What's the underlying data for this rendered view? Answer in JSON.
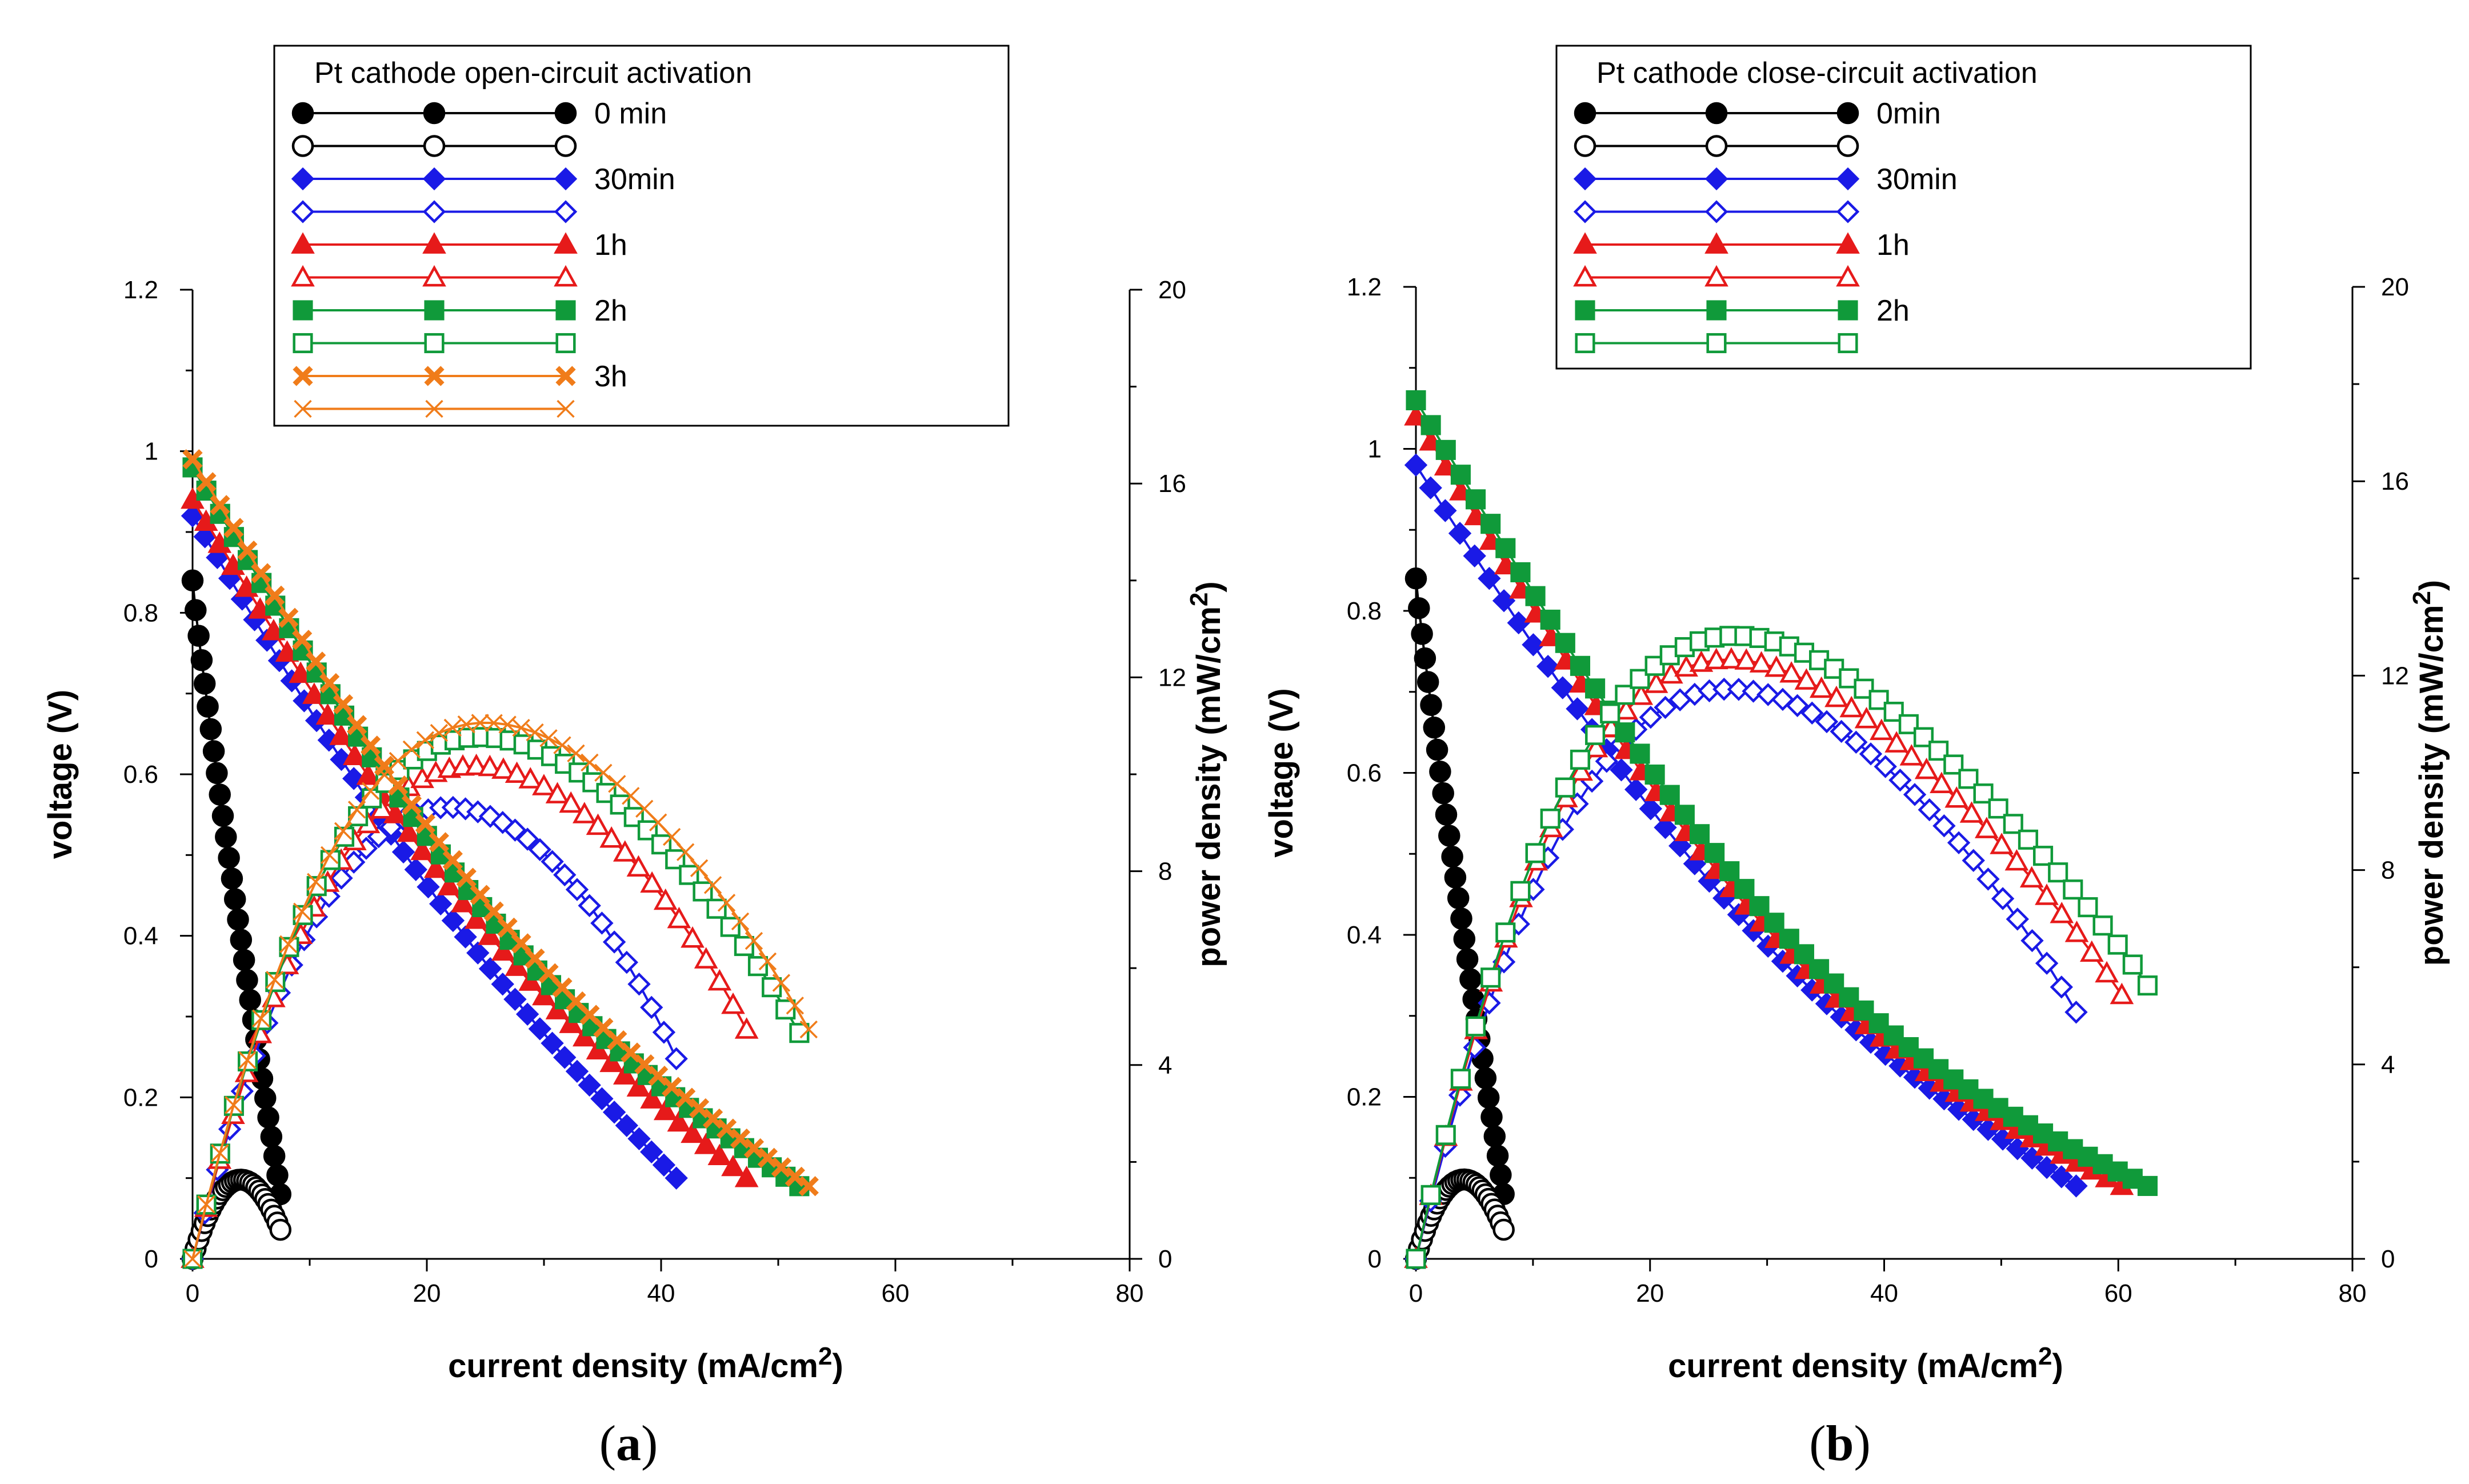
{
  "colors": {
    "0 min": "#000000",
    "30min": "#1a1ae6",
    "1h": "#e61a1a",
    "2h": "#109a3a",
    "3h": "#f07c1a"
  },
  "chart_data": [
    {
      "type": "line",
      "panel_label": "(a)",
      "xlabel": "current density (mA/cm",
      "xlabel_sup": "2",
      "xlabel_close": ")",
      "ylabel": "voltage (V)",
      "y2label": "power density (mW/cm",
      "y2label_sup": "2",
      "y2label_close": ")",
      "xlim": [
        0,
        80
      ],
      "ylim": [
        0,
        1.2
      ],
      "y2lim": [
        0,
        20
      ],
      "xticks": [
        "0",
        "20",
        "40",
        "60",
        "80"
      ],
      "yticks": [
        "0",
        "0.2",
        "0.4",
        "0.6",
        "0.8",
        "1",
        "1.2"
      ],
      "y2ticks": [
        "0",
        "4",
        "8",
        "12",
        "16",
        "20"
      ],
      "legend": {
        "title": "Pt cathode open-circuit activation",
        "entries": [
          {
            "label": "0 min",
            "key": "0 min",
            "marker": "circle",
            "filled": true
          },
          {
            "label": "",
            "key": "0 min",
            "marker": "circle",
            "filled": false
          },
          {
            "label": "30min",
            "key": "30min",
            "marker": "diamond",
            "filled": true
          },
          {
            "label": "",
            "key": "30min",
            "marker": "diamond",
            "filled": false
          },
          {
            "label": "1h",
            "key": "1h",
            "marker": "triangle",
            "filled": true
          },
          {
            "label": "",
            "key": "1h",
            "marker": "triangle",
            "filled": false
          },
          {
            "label": "2h",
            "key": "2h",
            "marker": "square",
            "filled": true
          },
          {
            "label": "",
            "key": "2h",
            "marker": "square",
            "filled": false
          },
          {
            "label": "3h",
            "key": "3h",
            "marker": "x",
            "filled": true
          },
          {
            "label": "",
            "key": "3h",
            "marker": "x",
            "filled": false
          }
        ]
      },
      "series": [
        {
          "name": "0 min",
          "kind": "voltage",
          "ocv": 0.84,
          "imax": 7.5,
          "vend": 0.08,
          "sag": 0.1,
          "marker": "circle",
          "filled": true,
          "n": 30
        },
        {
          "name": "0 min",
          "kind": "power",
          "ocv": 0.84,
          "imax": 7.5,
          "vend": 0.08,
          "sag": 0.1,
          "marker": "circle",
          "filled": false,
          "n": 30
        },
        {
          "name": "30min",
          "kind": "voltage",
          "ocv": 0.92,
          "imax": 41.3,
          "vend": 0.1,
          "sag": 0.06,
          "marker": "diamond",
          "filled": true,
          "n": 40
        },
        {
          "name": "30min",
          "kind": "power",
          "ocv": 0.92,
          "imax": 41.3,
          "vend": 0.1,
          "sag": 0.06,
          "marker": "diamond",
          "filled": false,
          "n": 40
        },
        {
          "name": "1h",
          "kind": "voltage",
          "ocv": 0.94,
          "imax": 47.3,
          "vend": 0.1,
          "sag": 0.09,
          "marker": "triangle",
          "filled": true,
          "n": 42
        },
        {
          "name": "1h",
          "kind": "power",
          "ocv": 0.94,
          "imax": 47.3,
          "vend": 0.1,
          "sag": 0.09,
          "marker": "triangle",
          "filled": false,
          "n": 42
        },
        {
          "name": "2h",
          "kind": "voltage",
          "ocv": 0.98,
          "imax": 51.8,
          "vend": 0.09,
          "sag": 0.12,
          "marker": "square",
          "filled": true,
          "n": 45
        },
        {
          "name": "2h",
          "kind": "power",
          "ocv": 0.98,
          "imax": 51.8,
          "vend": 0.09,
          "sag": 0.12,
          "marker": "square",
          "filled": false,
          "n": 45
        },
        {
          "name": "3h",
          "kind": "voltage",
          "ocv": 0.99,
          "imax": 52.6,
          "vend": 0.09,
          "sag": 0.12,
          "marker": "x",
          "filled": true,
          "n": 46
        },
        {
          "name": "3h",
          "kind": "power",
          "ocv": 0.99,
          "imax": 52.6,
          "vend": 0.09,
          "sag": 0.12,
          "marker": "x",
          "filled": false,
          "n": 46
        }
      ]
    },
    {
      "type": "line",
      "panel_label": "(b)",
      "xlabel": "current density (mA/cm",
      "xlabel_sup": "2",
      "xlabel_close": ")",
      "ylabel": "voltage (V)",
      "y2label": "power density (mW/cm",
      "y2label_sup": "2",
      "y2label_close": ")",
      "xlim": [
        0,
        80
      ],
      "ylim": [
        0,
        1.2
      ],
      "y2lim": [
        0,
        20
      ],
      "xticks": [
        "0",
        "20",
        "40",
        "60",
        "80"
      ],
      "yticks": [
        "0",
        "0.2",
        "0.4",
        "0.6",
        "0.8",
        "1",
        "1.2"
      ],
      "y2ticks": [
        "0",
        "4",
        "8",
        "12",
        "16",
        "20"
      ],
      "legend": {
        "title": "Pt cathode close-circuit activation",
        "entries": [
          {
            "label": "0min",
            "key": "0 min",
            "marker": "circle",
            "filled": true
          },
          {
            "label": "",
            "key": "0 min",
            "marker": "circle",
            "filled": false
          },
          {
            "label": "30min",
            "key": "30min",
            "marker": "diamond",
            "filled": true
          },
          {
            "label": "",
            "key": "30min",
            "marker": "diamond",
            "filled": false
          },
          {
            "label": "1h",
            "key": "1h",
            "marker": "triangle",
            "filled": true
          },
          {
            "label": "",
            "key": "1h",
            "marker": "triangle",
            "filled": false
          },
          {
            "label": "2h",
            "key": "2h",
            "marker": "square",
            "filled": true
          },
          {
            "label": "",
            "key": "2h",
            "marker": "square",
            "filled": false
          }
        ]
      },
      "series": [
        {
          "name": "0min",
          "key": "0 min",
          "kind": "voltage",
          "ocv": 0.84,
          "imax": 7.5,
          "vend": 0.08,
          "sag": 0.1,
          "marker": "circle",
          "filled": true,
          "n": 30
        },
        {
          "name": "0min",
          "key": "0 min",
          "kind": "power",
          "ocv": 0.84,
          "imax": 7.5,
          "vend": 0.08,
          "sag": 0.1,
          "marker": "circle",
          "filled": false,
          "n": 30
        },
        {
          "name": "30min",
          "kind": "voltage",
          "ocv": 0.98,
          "imax": 56.4,
          "vend": 0.09,
          "sag": 0.12,
          "marker": "diamond",
          "filled": true,
          "n": 46
        },
        {
          "name": "30min",
          "kind": "power",
          "ocv": 0.98,
          "imax": 56.4,
          "vend": 0.09,
          "sag": 0.12,
          "marker": "diamond",
          "filled": false,
          "n": 46
        },
        {
          "name": "1h",
          "kind": "voltage",
          "ocv": 1.04,
          "imax": 60.3,
          "vend": 0.09,
          "sag": 0.16,
          "marker": "triangle",
          "filled": true,
          "n": 48
        },
        {
          "name": "1h",
          "kind": "power",
          "ocv": 1.04,
          "imax": 60.3,
          "vend": 0.09,
          "sag": 0.16,
          "marker": "triangle",
          "filled": false,
          "n": 48
        },
        {
          "name": "2h",
          "kind": "voltage",
          "ocv": 1.06,
          "imax": 62.5,
          "vend": 0.09,
          "sag": 0.17,
          "marker": "square",
          "filled": true,
          "n": 50
        },
        {
          "name": "2h",
          "kind": "power",
          "ocv": 1.06,
          "imax": 62.5,
          "vend": 0.09,
          "sag": 0.17,
          "marker": "square",
          "filled": false,
          "n": 50
        }
      ]
    }
  ]
}
